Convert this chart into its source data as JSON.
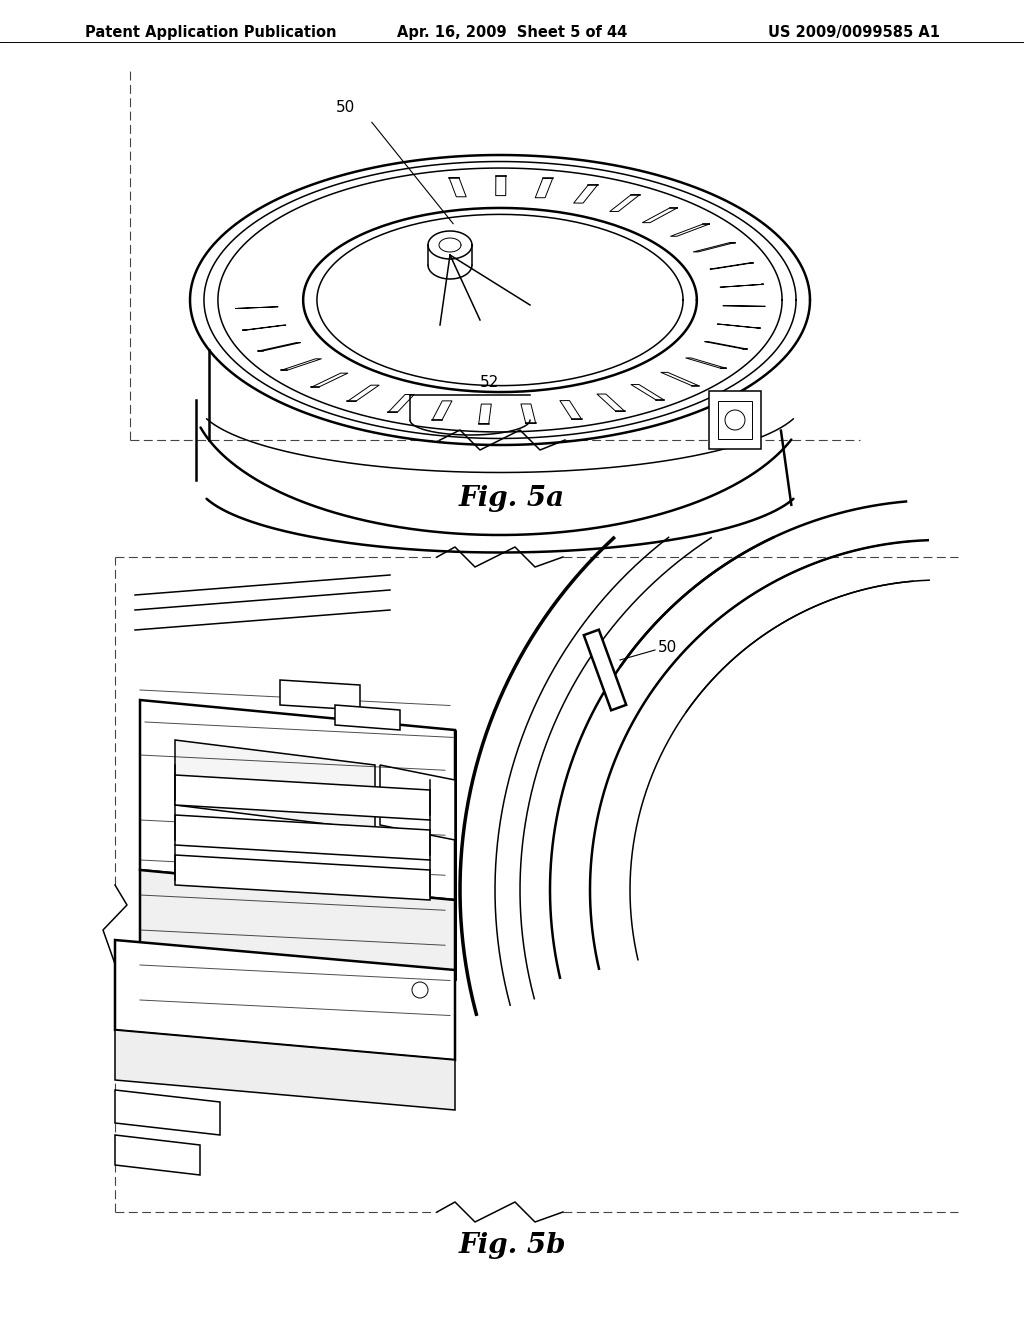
{
  "background_color": "#ffffff",
  "header_left": "Patent Application Publication",
  "header_mid": "Apr. 16, 2009  Sheet 5 of 44",
  "header_right": "US 2009/0099585 A1",
  "header_fontsize": 10.5,
  "fig5a_label": "Fig. 5a",
  "fig5b_label": "Fig. 5b",
  "label_fontsize": 20,
  "annot_fontsize": 11,
  "line_color": "#000000",
  "lw_thin": 0.7,
  "lw_med": 1.1,
  "lw_thick": 1.8,
  "lw_xthick": 2.5
}
